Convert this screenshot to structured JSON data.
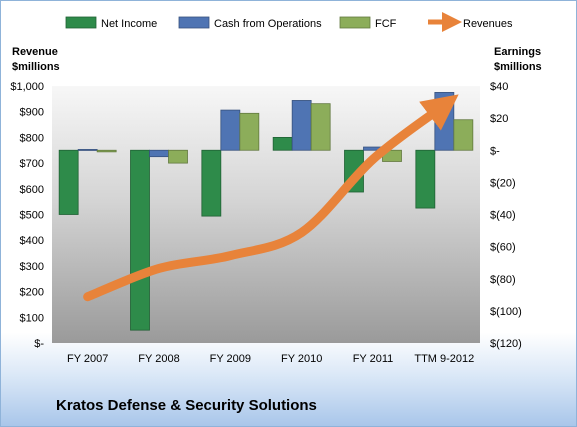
{
  "company_name": "Kratos Defense & Security Solutions",
  "chart_data": {
    "type": "bar",
    "categories": [
      "FY 2007",
      "FY 2008",
      "FY 2009",
      "FY 2010",
      "FY 2011",
      "TTM 9-2012"
    ],
    "series": [
      {
        "name": "Net Income",
        "axis": "right",
        "kind": "bar",
        "color": "#2e8b4a",
        "values": [
          -40,
          -112,
          -41,
          8,
          -26,
          -36
        ]
      },
      {
        "name": "Cash from Operations",
        "axis": "right",
        "kind": "bar",
        "color": "#4f74b3",
        "values": [
          0.5,
          -4,
          25,
          31,
          2,
          36
        ]
      },
      {
        "name": "FCF",
        "axis": "right",
        "kind": "bar",
        "color": "#8cad5a",
        "values": [
          -1,
          -8,
          23,
          29,
          -7,
          19
        ]
      },
      {
        "name": "Revenues",
        "axis": "left",
        "kind": "line",
        "color": "#e8833a",
        "values": [
          180,
          290,
          340,
          430,
          715,
          925
        ]
      }
    ],
    "left_axis": {
      "title_line1": "Revenue",
      "title_line2": "$millions",
      "min": 0,
      "max": 1000,
      "step": 100,
      "tick_labels": [
        "$-",
        "$100",
        "$200",
        "$300",
        "$400",
        "$500",
        "$600",
        "$700",
        "$800",
        "$900",
        "$1,000"
      ]
    },
    "right_axis": {
      "title_line1": "Earnings",
      "title_line2": "$millions",
      "min": -120,
      "max": 40,
      "step": 20,
      "tick_labels": [
        "$(120)",
        "$(100)",
        "$(80)",
        "$(60)",
        "$(40)",
        "$(20)",
        "$-",
        "$20",
        "$40"
      ]
    },
    "legend_position": "top",
    "grid": false
  }
}
